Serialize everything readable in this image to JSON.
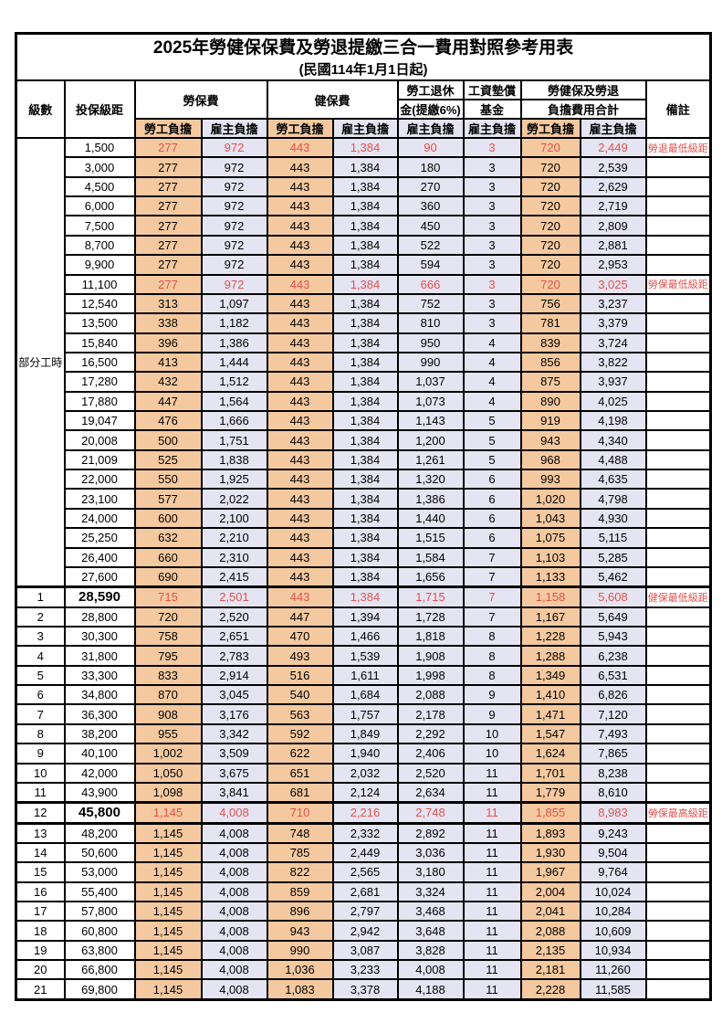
{
  "title": "2025年勞健保保費及勞退提繳三合一費用對照參考用表",
  "subtitle": "(民國114年1月1日起)",
  "colors": {
    "employee_fill": "#f5c9a0",
    "employer_fill": "#e5e4f2",
    "highlight_text": "#e2524e",
    "grid_line": "#000000"
  },
  "header": {
    "level": "級數",
    "salary": "投保級距",
    "labor": "勞保費",
    "health": "健保費",
    "pension_top": "勞工退休",
    "pension_bottom": "金(提繳6%)",
    "fund_top": "工資墊償",
    "fund_bottom": "基金",
    "total_top": "勞健保及勞退",
    "total_bottom": "負擔費用合計",
    "remark": "備註",
    "employee": "勞工負擔",
    "employer": "雇主負擔"
  },
  "part_time_label": "部分工時",
  "rows": [
    {
      "level": "",
      "salary": "1,500",
      "values": [
        "277",
        "972",
        "443",
        "1,384",
        "90",
        "3",
        "720",
        "2,449"
      ],
      "remark": "勞退最低級距",
      "red": true
    },
    {
      "level": "",
      "salary": "3,000",
      "values": [
        "277",
        "972",
        "443",
        "1,384",
        "180",
        "3",
        "720",
        "2,539"
      ],
      "remark": ""
    },
    {
      "level": "",
      "salary": "4,500",
      "values": [
        "277",
        "972",
        "443",
        "1,384",
        "270",
        "3",
        "720",
        "2,629"
      ],
      "remark": ""
    },
    {
      "level": "",
      "salary": "6,000",
      "values": [
        "277",
        "972",
        "443",
        "1,384",
        "360",
        "3",
        "720",
        "2,719"
      ],
      "remark": ""
    },
    {
      "level": "",
      "salary": "7,500",
      "values": [
        "277",
        "972",
        "443",
        "1,384",
        "450",
        "3",
        "720",
        "2,809"
      ],
      "remark": ""
    },
    {
      "level": "",
      "salary": "8,700",
      "values": [
        "277",
        "972",
        "443",
        "1,384",
        "522",
        "3",
        "720",
        "2,881"
      ],
      "remark": ""
    },
    {
      "level": "",
      "salary": "9,900",
      "values": [
        "277",
        "972",
        "443",
        "1,384",
        "594",
        "3",
        "720",
        "2,953"
      ],
      "remark": ""
    },
    {
      "level": "",
      "salary": "11,100",
      "values": [
        "277",
        "972",
        "443",
        "1,384",
        "666",
        "3",
        "720",
        "3,025"
      ],
      "remark": "勞保最低級距",
      "red": true
    },
    {
      "level": "",
      "salary": "12,540",
      "values": [
        "313",
        "1,097",
        "443",
        "1,384",
        "752",
        "3",
        "756",
        "3,237"
      ],
      "remark": ""
    },
    {
      "level": "",
      "salary": "13,500",
      "values": [
        "338",
        "1,182",
        "443",
        "1,384",
        "810",
        "3",
        "781",
        "3,379"
      ],
      "remark": ""
    },
    {
      "level": "",
      "salary": "15,840",
      "values": [
        "396",
        "1,386",
        "443",
        "1,384",
        "950",
        "4",
        "839",
        "3,724"
      ],
      "remark": ""
    },
    {
      "level": "",
      "salary": "16,500",
      "values": [
        "413",
        "1,444",
        "443",
        "1,384",
        "990",
        "4",
        "856",
        "3,822"
      ],
      "remark": ""
    },
    {
      "level": "",
      "salary": "17,280",
      "values": [
        "432",
        "1,512",
        "443",
        "1,384",
        "1,037",
        "4",
        "875",
        "3,937"
      ],
      "remark": ""
    },
    {
      "level": "",
      "salary": "17,880",
      "values": [
        "447",
        "1,564",
        "443",
        "1,384",
        "1,073",
        "4",
        "890",
        "4,025"
      ],
      "remark": ""
    },
    {
      "level": "",
      "salary": "19,047",
      "values": [
        "476",
        "1,666",
        "443",
        "1,384",
        "1,143",
        "5",
        "919",
        "4,198"
      ],
      "remark": ""
    },
    {
      "level": "",
      "salary": "20,008",
      "values": [
        "500",
        "1,751",
        "443",
        "1,384",
        "1,200",
        "5",
        "943",
        "4,340"
      ],
      "remark": ""
    },
    {
      "level": "",
      "salary": "21,009",
      "values": [
        "525",
        "1,838",
        "443",
        "1,384",
        "1,261",
        "5",
        "968",
        "4,488"
      ],
      "remark": ""
    },
    {
      "level": "",
      "salary": "22,000",
      "values": [
        "550",
        "1,925",
        "443",
        "1,384",
        "1,320",
        "6",
        "993",
        "4,635"
      ],
      "remark": ""
    },
    {
      "level": "",
      "salary": "23,100",
      "values": [
        "577",
        "2,022",
        "443",
        "1,384",
        "1,386",
        "6",
        "1,020",
        "4,798"
      ],
      "remark": ""
    },
    {
      "level": "",
      "salary": "24,000",
      "values": [
        "600",
        "2,100",
        "443",
        "1,384",
        "1,440",
        "6",
        "1,043",
        "4,930"
      ],
      "remark": ""
    },
    {
      "level": "",
      "salary": "25,250",
      "values": [
        "632",
        "2,210",
        "443",
        "1,384",
        "1,515",
        "6",
        "1,075",
        "5,115"
      ],
      "remark": ""
    },
    {
      "level": "",
      "salary": "26,400",
      "values": [
        "660",
        "2,310",
        "443",
        "1,384",
        "1,584",
        "7",
        "1,103",
        "5,285"
      ],
      "remark": ""
    },
    {
      "level": "",
      "salary": "27,600",
      "values": [
        "690",
        "2,415",
        "443",
        "1,384",
        "1,656",
        "7",
        "1,133",
        "5,462"
      ],
      "remark": ""
    },
    {
      "level": "1",
      "salary": "28,590",
      "values": [
        "715",
        "2,501",
        "443",
        "1,384",
        "1,715",
        "7",
        "1,158",
        "5,608"
      ],
      "remark": "健保最低級距",
      "red": true,
      "bold": true,
      "thick_top": true
    },
    {
      "level": "2",
      "salary": "28,800",
      "values": [
        "720",
        "2,520",
        "447",
        "1,394",
        "1,728",
        "7",
        "1,167",
        "5,649"
      ],
      "remark": ""
    },
    {
      "level": "3",
      "salary": "30,300",
      "values": [
        "758",
        "2,651",
        "470",
        "1,466",
        "1,818",
        "8",
        "1,228",
        "5,943"
      ],
      "remark": ""
    },
    {
      "level": "4",
      "salary": "31,800",
      "values": [
        "795",
        "2,783",
        "493",
        "1,539",
        "1,908",
        "8",
        "1,288",
        "6,238"
      ],
      "remark": ""
    },
    {
      "level": "5",
      "salary": "33,300",
      "values": [
        "833",
        "2,914",
        "516",
        "1,611",
        "1,998",
        "8",
        "1,349",
        "6,531"
      ],
      "remark": ""
    },
    {
      "level": "6",
      "salary": "34,800",
      "values": [
        "870",
        "3,045",
        "540",
        "1,684",
        "2,088",
        "9",
        "1,410",
        "6,826"
      ],
      "remark": ""
    },
    {
      "level": "7",
      "salary": "36,300",
      "values": [
        "908",
        "3,176",
        "563",
        "1,757",
        "2,178",
        "9",
        "1,471",
        "7,120"
      ],
      "remark": ""
    },
    {
      "level": "8",
      "salary": "38,200",
      "values": [
        "955",
        "3,342",
        "592",
        "1,849",
        "2,292",
        "10",
        "1,547",
        "7,493"
      ],
      "remark": ""
    },
    {
      "level": "9",
      "salary": "40,100",
      "values": [
        "1,002",
        "3,509",
        "622",
        "1,940",
        "2,406",
        "10",
        "1,624",
        "7,865"
      ],
      "remark": ""
    },
    {
      "level": "10",
      "salary": "42,000",
      "values": [
        "1,050",
        "3,675",
        "651",
        "2,032",
        "2,520",
        "11",
        "1,701",
        "8,238"
      ],
      "remark": ""
    },
    {
      "level": "11",
      "salary": "43,900",
      "values": [
        "1,098",
        "3,841",
        "681",
        "2,124",
        "2,634",
        "11",
        "1,779",
        "8,610"
      ],
      "remark": ""
    },
    {
      "level": "12",
      "salary": "45,800",
      "values": [
        "1,145",
        "4,008",
        "710",
        "2,216",
        "2,748",
        "11",
        "1,855",
        "8,983"
      ],
      "remark": "勞保最高級距",
      "red": true,
      "bold": true,
      "thick_top": true,
      "thick_bottom": true
    },
    {
      "level": "13",
      "salary": "48,200",
      "values": [
        "1,145",
        "4,008",
        "748",
        "2,332",
        "2,892",
        "11",
        "1,893",
        "9,243"
      ],
      "remark": ""
    },
    {
      "level": "14",
      "salary": "50,600",
      "values": [
        "1,145",
        "4,008",
        "785",
        "2,449",
        "3,036",
        "11",
        "1,930",
        "9,504"
      ],
      "remark": ""
    },
    {
      "level": "15",
      "salary": "53,000",
      "values": [
        "1,145",
        "4,008",
        "822",
        "2,565",
        "3,180",
        "11",
        "1,967",
        "9,764"
      ],
      "remark": ""
    },
    {
      "level": "16",
      "salary": "55,400",
      "values": [
        "1,145",
        "4,008",
        "859",
        "2,681",
        "3,324",
        "11",
        "2,004",
        "10,024"
      ],
      "remark": ""
    },
    {
      "level": "17",
      "salary": "57,800",
      "values": [
        "1,145",
        "4,008",
        "896",
        "2,797",
        "3,468",
        "11",
        "2,041",
        "10,284"
      ],
      "remark": ""
    },
    {
      "level": "18",
      "salary": "60,800",
      "values": [
        "1,145",
        "4,008",
        "943",
        "2,942",
        "3,648",
        "11",
        "2,088",
        "10,609"
      ],
      "remark": ""
    },
    {
      "level": "19",
      "salary": "63,800",
      "values": [
        "1,145",
        "4,008",
        "990",
        "3,087",
        "3,828",
        "11",
        "2,135",
        "10,934"
      ],
      "remark": ""
    },
    {
      "level": "20",
      "salary": "66,800",
      "values": [
        "1,145",
        "4,008",
        "1,036",
        "3,233",
        "4,008",
        "11",
        "2,181",
        "11,260"
      ],
      "remark": ""
    },
    {
      "level": "21",
      "salary": "69,800",
      "values": [
        "1,145",
        "4,008",
        "1,083",
        "3,378",
        "4,188",
        "11",
        "2,228",
        "11,585"
      ],
      "remark": ""
    }
  ]
}
